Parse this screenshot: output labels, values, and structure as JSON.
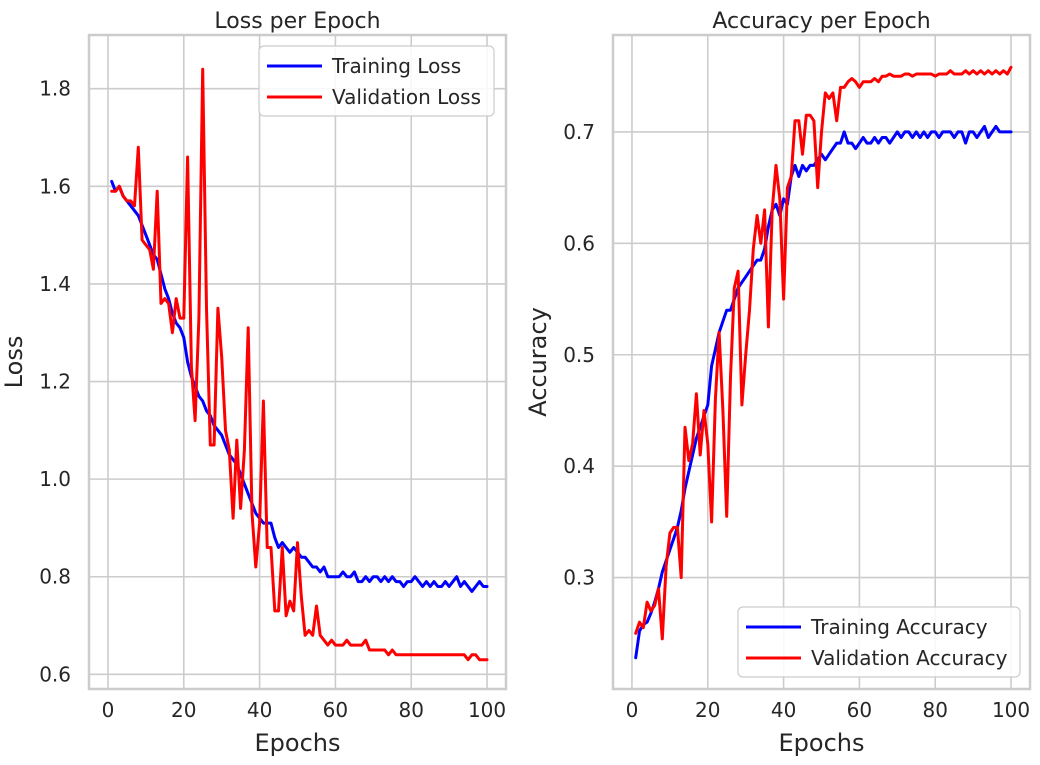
{
  "chart_data": [
    {
      "type": "line",
      "title": "Loss per Epoch",
      "xlabel": "Epochs",
      "ylabel": "Loss",
      "xlim": [
        -5,
        105
      ],
      "ylim": [
        0.57,
        1.91
      ],
      "xticks": [
        0,
        20,
        40,
        60,
        80,
        100
      ],
      "yticks": [
        0.6,
        0.8,
        1.0,
        1.2,
        1.4,
        1.6,
        1.8
      ],
      "xtick_labels": [
        "0",
        "20",
        "40",
        "60",
        "80",
        "100"
      ],
      "ytick_labels": [
        "0.6",
        "0.8",
        "1.0",
        "1.2",
        "1.4",
        "1.6",
        "1.8"
      ],
      "grid": true,
      "legend_position": "top-right",
      "x": [
        1,
        2,
        3,
        4,
        5,
        6,
        7,
        8,
        9,
        10,
        11,
        12,
        13,
        14,
        15,
        16,
        17,
        18,
        19,
        20,
        21,
        22,
        23,
        24,
        25,
        26,
        27,
        28,
        29,
        30,
        31,
        32,
        33,
        34,
        35,
        36,
        37,
        38,
        39,
        40,
        41,
        42,
        43,
        44,
        45,
        46,
        47,
        48,
        49,
        50,
        51,
        52,
        53,
        54,
        55,
        56,
        57,
        58,
        59,
        60,
        61,
        62,
        63,
        64,
        65,
        66,
        67,
        68,
        69,
        70,
        71,
        72,
        73,
        74,
        75,
        76,
        77,
        78,
        79,
        80,
        81,
        82,
        83,
        84,
        85,
        86,
        87,
        88,
        89,
        90,
        91,
        92,
        93,
        94,
        95,
        96,
        97,
        98,
        99,
        100
      ],
      "series": [
        {
          "name": "Training Loss",
          "color": "#0000ff",
          "values": [
            1.61,
            1.59,
            1.6,
            1.58,
            1.57,
            1.56,
            1.55,
            1.54,
            1.52,
            1.5,
            1.48,
            1.46,
            1.45,
            1.42,
            1.39,
            1.37,
            1.34,
            1.32,
            1.31,
            1.29,
            1.24,
            1.21,
            1.19,
            1.17,
            1.16,
            1.14,
            1.13,
            1.11,
            1.1,
            1.09,
            1.07,
            1.05,
            1.04,
            1.03,
            1.01,
            0.99,
            0.97,
            0.95,
            0.93,
            0.92,
            0.91,
            0.91,
            0.91,
            0.88,
            0.86,
            0.87,
            0.86,
            0.85,
            0.86,
            0.85,
            0.84,
            0.84,
            0.83,
            0.82,
            0.82,
            0.81,
            0.82,
            0.8,
            0.8,
            0.8,
            0.8,
            0.81,
            0.8,
            0.8,
            0.81,
            0.79,
            0.79,
            0.8,
            0.79,
            0.8,
            0.8,
            0.79,
            0.8,
            0.79,
            0.8,
            0.79,
            0.79,
            0.78,
            0.79,
            0.79,
            0.8,
            0.79,
            0.78,
            0.79,
            0.78,
            0.79,
            0.78,
            0.78,
            0.79,
            0.78,
            0.79,
            0.8,
            0.78,
            0.79,
            0.78,
            0.77,
            0.78,
            0.79,
            0.78,
            0.78
          ]
        },
        {
          "name": "Validation Loss",
          "color": "#ff0000",
          "values": [
            1.59,
            1.59,
            1.6,
            1.58,
            1.57,
            1.57,
            1.56,
            1.68,
            1.49,
            1.48,
            1.47,
            1.43,
            1.59,
            1.36,
            1.37,
            1.36,
            1.3,
            1.37,
            1.33,
            1.33,
            1.66,
            1.23,
            1.12,
            1.33,
            1.84,
            1.35,
            1.07,
            1.07,
            1.35,
            1.25,
            1.1,
            1.06,
            0.92,
            1.08,
            0.94,
            1.06,
            1.31,
            0.93,
            0.82,
            0.91,
            1.16,
            0.86,
            0.86,
            0.73,
            0.73,
            0.86,
            0.72,
            0.75,
            0.73,
            0.87,
            0.76,
            0.68,
            0.69,
            0.68,
            0.74,
            0.68,
            0.67,
            0.66,
            0.67,
            0.66,
            0.66,
            0.66,
            0.67,
            0.66,
            0.66,
            0.66,
            0.66,
            0.67,
            0.65,
            0.65,
            0.65,
            0.65,
            0.65,
            0.64,
            0.65,
            0.64,
            0.64,
            0.64,
            0.64,
            0.64,
            0.64,
            0.64,
            0.64,
            0.64,
            0.64,
            0.64,
            0.64,
            0.64,
            0.64,
            0.64,
            0.64,
            0.64,
            0.64,
            0.64,
            0.63,
            0.64,
            0.64,
            0.63,
            0.63,
            0.63
          ]
        }
      ]
    },
    {
      "type": "line",
      "title": "Accuracy per Epoch",
      "xlabel": "Epochs",
      "ylabel": "Accuracy",
      "xlim": [
        -5,
        105
      ],
      "ylim": [
        0.2,
        0.787
      ],
      "xticks": [
        0,
        20,
        40,
        60,
        80,
        100
      ],
      "yticks": [
        0.3,
        0.4,
        0.5,
        0.6,
        0.7
      ],
      "xtick_labels": [
        "0",
        "20",
        "40",
        "60",
        "80",
        "100"
      ],
      "ytick_labels": [
        "0.3",
        "0.4",
        "0.5",
        "0.6",
        "0.7"
      ],
      "grid": true,
      "legend_position": "bottom-right",
      "x": [
        1,
        2,
        3,
        4,
        5,
        6,
        7,
        8,
        9,
        10,
        11,
        12,
        13,
        14,
        15,
        16,
        17,
        18,
        19,
        20,
        21,
        22,
        23,
        24,
        25,
        26,
        27,
        28,
        29,
        30,
        31,
        32,
        33,
        34,
        35,
        36,
        37,
        38,
        39,
        40,
        41,
        42,
        43,
        44,
        45,
        46,
        47,
        48,
        49,
        50,
        51,
        52,
        53,
        54,
        55,
        56,
        57,
        58,
        59,
        60,
        61,
        62,
        63,
        64,
        65,
        66,
        67,
        68,
        69,
        70,
        71,
        72,
        73,
        74,
        75,
        76,
        77,
        78,
        79,
        80,
        81,
        82,
        83,
        84,
        85,
        86,
        87,
        88,
        89,
        90,
        91,
        92,
        93,
        94,
        95,
        96,
        97,
        98,
        99,
        100
      ],
      "series": [
        {
          "name": "Training Accuracy",
          "color": "#0000ff",
          "values": [
            0.228,
            0.252,
            0.258,
            0.26,
            0.268,
            0.278,
            0.29,
            0.305,
            0.315,
            0.325,
            0.335,
            0.345,
            0.36,
            0.38,
            0.395,
            0.41,
            0.425,
            0.435,
            0.445,
            0.455,
            0.49,
            0.505,
            0.52,
            0.53,
            0.54,
            0.54,
            0.55,
            0.56,
            0.565,
            0.57,
            0.575,
            0.58,
            0.585,
            0.585,
            0.595,
            0.615,
            0.63,
            0.635,
            0.625,
            0.64,
            0.635,
            0.66,
            0.67,
            0.66,
            0.67,
            0.665,
            0.67,
            0.67,
            0.675,
            0.68,
            0.675,
            0.68,
            0.685,
            0.69,
            0.69,
            0.7,
            0.69,
            0.69,
            0.685,
            0.69,
            0.695,
            0.69,
            0.69,
            0.695,
            0.69,
            0.695,
            0.695,
            0.69,
            0.695,
            0.7,
            0.695,
            0.7,
            0.7,
            0.695,
            0.7,
            0.695,
            0.7,
            0.695,
            0.7,
            0.7,
            0.695,
            0.7,
            0.7,
            0.7,
            0.695,
            0.7,
            0.7,
            0.69,
            0.7,
            0.7,
            0.695,
            0.7,
            0.705,
            0.695,
            0.7,
            0.705,
            0.7,
            0.7,
            0.7,
            0.7
          ]
        },
        {
          "name": "Validation Accuracy",
          "color": "#ff0000",
          "values": [
            0.25,
            0.26,
            0.255,
            0.278,
            0.27,
            0.275,
            0.29,
            0.245,
            0.31,
            0.34,
            0.345,
            0.345,
            0.3,
            0.435,
            0.405,
            0.42,
            0.465,
            0.41,
            0.45,
            0.42,
            0.35,
            0.46,
            0.52,
            0.45,
            0.355,
            0.48,
            0.56,
            0.575,
            0.455,
            0.5,
            0.54,
            0.595,
            0.625,
            0.6,
            0.63,
            0.525,
            0.63,
            0.67,
            0.64,
            0.55,
            0.65,
            0.66,
            0.71,
            0.71,
            0.68,
            0.715,
            0.715,
            0.71,
            0.65,
            0.7,
            0.735,
            0.73,
            0.735,
            0.71,
            0.74,
            0.74,
            0.745,
            0.748,
            0.745,
            0.74,
            0.745,
            0.745,
            0.745,
            0.748,
            0.745,
            0.75,
            0.75,
            0.752,
            0.75,
            0.75,
            0.75,
            0.752,
            0.752,
            0.75,
            0.752,
            0.752,
            0.752,
            0.752,
            0.752,
            0.75,
            0.752,
            0.752,
            0.752,
            0.755,
            0.752,
            0.752,
            0.752,
            0.755,
            0.752,
            0.755,
            0.752,
            0.755,
            0.752,
            0.755,
            0.752,
            0.755,
            0.752,
            0.755,
            0.752,
            0.758
          ]
        }
      ]
    }
  ]
}
